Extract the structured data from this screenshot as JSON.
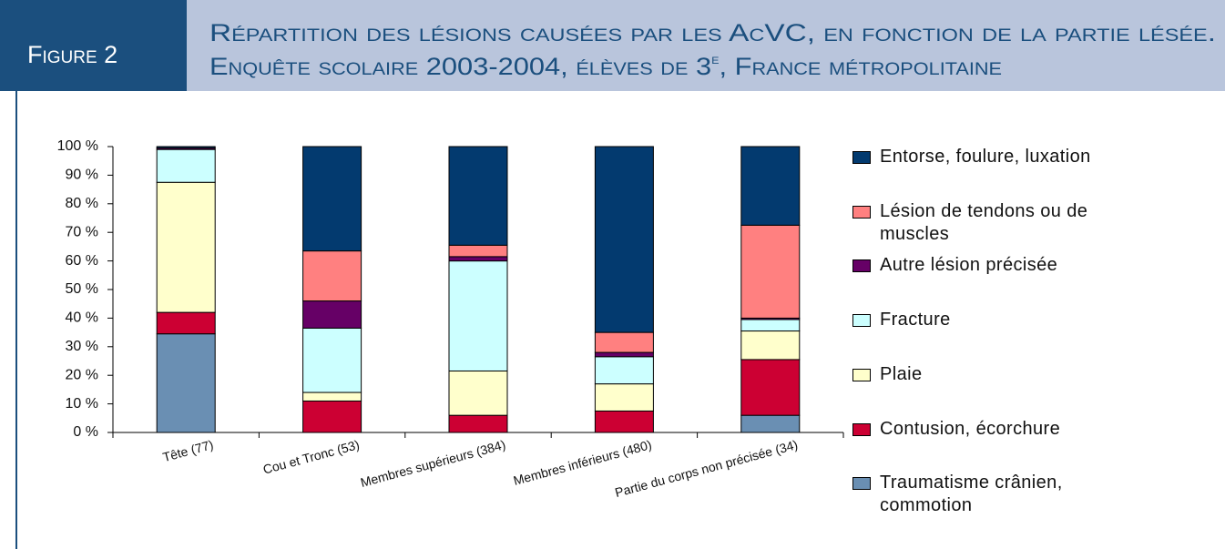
{
  "header": {
    "figure": "Figure 2",
    "title_line1": "Répartition des lésions causées par les AcVC, en fonction de la partie lésée.",
    "title_line2_a": "Enquête scolaire 2003-2004, élèves de 3",
    "title_line2_sup": "e",
    "title_line2_b": ", France métropolitaine"
  },
  "chart_data": {
    "type": "stacked_bar",
    "categories": [
      "Tête (77)",
      "Cou et Tronc (53)",
      "Membres supérieurs (384)",
      "Membres inférieurs (480)",
      "Partie du corps non précisée (34)"
    ],
    "series": [
      {
        "name": "Entorse, foulure, luxation",
        "color": "#033a6f",
        "values": [
          0.5,
          36.5,
          34.5,
          65,
          27.5
        ]
      },
      {
        "name": "Lésion de tendons ou de muscles",
        "color": "#ff8080",
        "values": [
          0,
          17.5,
          4,
          7,
          32.5
        ]
      },
      {
        "name": "Autre lésion précisée",
        "color": "#660066",
        "values": [
          0.5,
          9.5,
          1.5,
          1.5,
          0.5
        ]
      },
      {
        "name": "Fracture",
        "color": "#ccffff",
        "values": [
          11.5,
          22.5,
          38.5,
          9.5,
          4
        ]
      },
      {
        "name": "Plaie",
        "color": "#ffffcc",
        "values": [
          45.5,
          3,
          15.5,
          9.5,
          10
        ]
      },
      {
        "name": "Contusion, écorchure",
        "color": "#cc0033",
        "values": [
          7.5,
          11,
          6,
          7.5,
          19.5
        ]
      },
      {
        "name": "Traumatisme crânien, commotion",
        "color": "#6a8fb3",
        "values": [
          34.5,
          0,
          0,
          0,
          6
        ]
      }
    ],
    "ylim": [
      0,
      100
    ],
    "yticks": [
      {
        "value": 0,
        "label": "0 %"
      },
      {
        "value": 10,
        "label": "10 %"
      },
      {
        "value": 20,
        "label": "20 %"
      },
      {
        "value": 30,
        "label": "30 %"
      },
      {
        "value": 40,
        "label": "40 %"
      },
      {
        "value": 50,
        "label": "50 %"
      },
      {
        "value": 60,
        "label": "60 %"
      },
      {
        "value": 70,
        "label": "70 %"
      },
      {
        "value": 80,
        "label": "80 %"
      },
      {
        "value": 90,
        "label": "90 %"
      },
      {
        "value": 100,
        "label": "100 %"
      }
    ]
  }
}
